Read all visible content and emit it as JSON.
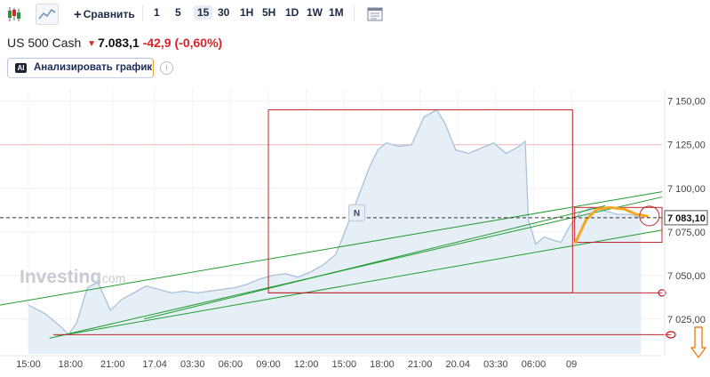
{
  "toolbar": {
    "compare_label": "Сравнить",
    "intervals": [
      "1",
      "5",
      "15",
      "30",
      "1H",
      "5H",
      "1D",
      "1W",
      "1M"
    ],
    "active_interval": "15"
  },
  "quote": {
    "name": "US 500 Cash",
    "price": "7.083,1",
    "change": "-42,9",
    "change_pct": "(-0,60%)"
  },
  "ai_button": {
    "badge": "AI",
    "label": "Анализировать график"
  },
  "watermark": {
    "main": "Investing",
    "suffix": ".com"
  },
  "colors": {
    "area_line": "#a9c2d9",
    "area_fill": "#e6eef6",
    "trend": "#1f9c2f",
    "box": "#c0282d",
    "highlight": "#f5a623",
    "down_arrow": "#f07f1a"
  },
  "chart_data": {
    "type": "area",
    "series": [
      {
        "values": [
          [
            0,
            7033
          ],
          [
            0.8,
            7028
          ],
          [
            1.6,
            7020
          ],
          [
            1.9,
            7016
          ],
          [
            2.3,
            7023
          ],
          [
            2.8,
            7043
          ],
          [
            3.3,
            7046
          ],
          [
            3.9,
            7030
          ],
          [
            4.4,
            7036
          ],
          [
            5.0,
            7040
          ],
          [
            5.6,
            7044
          ],
          [
            6.2,
            7042
          ],
          [
            6.8,
            7040
          ],
          [
            7.4,
            7041
          ],
          [
            8.0,
            7040
          ],
          [
            8.6,
            7041
          ],
          [
            9.2,
            7042
          ],
          [
            9.8,
            7043
          ],
          [
            10.4,
            7045
          ],
          [
            11.0,
            7048
          ],
          [
            11.6,
            7050
          ],
          [
            12.2,
            7051
          ],
          [
            12.8,
            7049
          ],
          [
            13.4,
            7052
          ],
          [
            14.0,
            7056
          ],
          [
            14.6,
            7062
          ],
          [
            15.0,
            7074
          ],
          [
            15.6,
            7093
          ],
          [
            16.2,
            7112
          ],
          [
            16.6,
            7122
          ],
          [
            17.0,
            7126
          ],
          [
            17.6,
            7124
          ],
          [
            18.2,
            7125
          ],
          [
            18.8,
            7141
          ],
          [
            19.4,
            7145
          ],
          [
            19.8,
            7137
          ],
          [
            20.3,
            7122
          ],
          [
            20.9,
            7120
          ],
          [
            21.5,
            7123
          ],
          [
            22.1,
            7126
          ],
          [
            22.7,
            7120
          ],
          [
            23.3,
            7124
          ],
          [
            23.6,
            7127
          ],
          [
            23.75,
            7082
          ],
          [
            24.1,
            7068
          ],
          [
            24.5,
            7072
          ],
          [
            25.0,
            7070
          ],
          [
            25.3,
            7069
          ],
          [
            25.7,
            7078
          ],
          [
            26.2,
            7086
          ],
          [
            26.8,
            7089
          ],
          [
            27.4,
            7087
          ],
          [
            28.0,
            7085
          ],
          [
            28.6,
            7085
          ],
          [
            29.1,
            7083
          ]
        ]
      }
    ],
    "x_ticks": [
      {
        "x": 0,
        "label": "15:00"
      },
      {
        "x": 2,
        "label": "18:00"
      },
      {
        "x": 4,
        "label": "21:00"
      },
      {
        "x": 6,
        "label": "17.04"
      },
      {
        "x": 7.8,
        "label": "03:30"
      },
      {
        "x": 9.6,
        "label": "06:00"
      },
      {
        "x": 11.4,
        "label": "09:00"
      },
      {
        "x": 13.2,
        "label": "12:00"
      },
      {
        "x": 15.0,
        "label": "15:00"
      },
      {
        "x": 16.8,
        "label": "18:00"
      },
      {
        "x": 18.6,
        "label": "21:00"
      },
      {
        "x": 20.4,
        "label": "20.04"
      },
      {
        "x": 22.2,
        "label": "03:30"
      },
      {
        "x": 24.0,
        "label": "06:00"
      },
      {
        "x": 25.8,
        "label": "09"
      }
    ],
    "y_ticks": [
      7150,
      7125,
      7100,
      7075,
      7050,
      7025
    ],
    "y_tick_labels": [
      "7 150,00",
      "7 125,00",
      "7 100,00",
      "7 075,00",
      "7 050,00",
      "7 025,00"
    ],
    "ylim": [
      7005,
      7157
    ],
    "xlim": [
      -1.35,
      30.1
    ],
    "current_price_label": "7 083,10",
    "current_price": 7083.1,
    "reference_line": 7125,
    "news_marker": {
      "x": 15.6,
      "y": 7086,
      "label": "N"
    },
    "trend_lines": [
      [
        [
          -1.35,
          7033
        ],
        [
          30.1,
          7098
        ]
      ],
      [
        [
          1.0,
          7014
        ],
        [
          30.1,
          7095
        ]
      ],
      [
        [
          1.3,
          7015
        ],
        [
          30.1,
          7076
        ]
      ],
      [
        [
          5.5,
          7025
        ],
        [
          27.4,
          7090
        ]
      ]
    ],
    "annotation_boxes": [
      {
        "x": [
          11.4,
          25.85
        ],
        "y": [
          7040,
          7145
        ]
      },
      {
        "x": [
          25.95,
          30.1
        ],
        "y": [
          7069,
          7089
        ]
      }
    ],
    "annotation_hlines": [
      7040,
      7016
    ],
    "curved_projection": [
      [
        26.0,
        7069
      ],
      [
        26.5,
        7082
      ],
      [
        27.0,
        7088
      ],
      [
        27.6,
        7089
      ],
      [
        28.3,
        7088
      ],
      [
        28.9,
        7085
      ],
      [
        29.4,
        7084
      ]
    ]
  }
}
